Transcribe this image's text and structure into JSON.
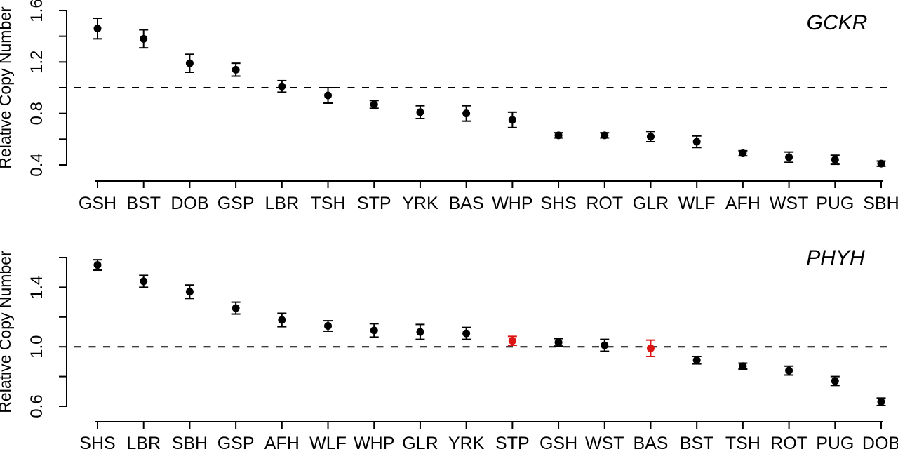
{
  "figure": {
    "background": "#ffffff",
    "point_color": "#000000",
    "highlight_color": "#dc1414",
    "reference_value": "1.0"
  },
  "chart_data": [
    {
      "type": "scatter",
      "title": "GCKR",
      "ylabel": "Relative Copy Number",
      "ylim": [
        0.4,
        1.6
      ],
      "ytick_interval": 0.2,
      "ytick_labels": [
        {
          "label": "0.4",
          "value": 0.4
        },
        {
          "label": "0.8",
          "value": 0.8
        },
        {
          "label": "1.2",
          "value": 1.2
        },
        {
          "label": "1.6",
          "value": 1.6
        }
      ],
      "ref_line": 1.0,
      "ref_line_style": "dashed",
      "grid": false,
      "legend": "none",
      "error_bars": true,
      "categories": [
        "GSH",
        "BST",
        "DOB",
        "GSP",
        "LBR",
        "TSH",
        "STP",
        "YRK",
        "BAS",
        "WHP",
        "SHS",
        "ROT",
        "GLR",
        "WLF",
        "AFH",
        "WST",
        "PUG",
        "SBH"
      ],
      "values": [
        1.46,
        1.38,
        1.19,
        1.14,
        1.01,
        0.94,
        0.87,
        0.81,
        0.8,
        0.75,
        0.63,
        0.63,
        0.62,
        0.58,
        0.49,
        0.46,
        0.44,
        0.41
      ],
      "errors": [
        0.08,
        0.07,
        0.07,
        0.05,
        0.045,
        0.06,
        0.03,
        0.05,
        0.06,
        0.06,
        0.02,
        0.02,
        0.04,
        0.045,
        0.02,
        0.04,
        0.035,
        0.02
      ],
      "highlight_indices": [],
      "highlighted_categories": []
    },
    {
      "type": "scatter",
      "title": "PHYH",
      "ylabel": "Relative Copy Number",
      "ylim": [
        0.6,
        1.6
      ],
      "ytick_interval": 0.2,
      "ytick_labels": [
        {
          "label": "0.6",
          "value": 0.6
        },
        {
          "label": "1.0",
          "value": 1.0
        },
        {
          "label": "1.4",
          "value": 1.4
        }
      ],
      "ref_line": 1.0,
      "ref_line_style": "dashed",
      "grid": false,
      "legend": "none",
      "error_bars": true,
      "categories": [
        "SHS",
        "LBR",
        "SBH",
        "GSP",
        "AFH",
        "WLF",
        "WHP",
        "GLR",
        "YRK",
        "STP",
        "GSH",
        "WST",
        "BAS",
        "BST",
        "TSH",
        "ROT",
        "PUG",
        "DOB"
      ],
      "values": [
        1.55,
        1.44,
        1.37,
        1.26,
        1.18,
        1.14,
        1.11,
        1.1,
        1.09,
        1.04,
        1.03,
        1.01,
        0.99,
        0.91,
        0.87,
        0.84,
        0.77,
        0.63
      ],
      "errors": [
        0.035,
        0.04,
        0.045,
        0.04,
        0.045,
        0.035,
        0.045,
        0.05,
        0.04,
        0.03,
        0.025,
        0.04,
        0.055,
        0.025,
        0.02,
        0.03,
        0.03,
        0.025
      ],
      "highlight_indices": [
        9,
        12
      ],
      "highlighted_categories": [
        "STP",
        "BAS"
      ]
    }
  ]
}
